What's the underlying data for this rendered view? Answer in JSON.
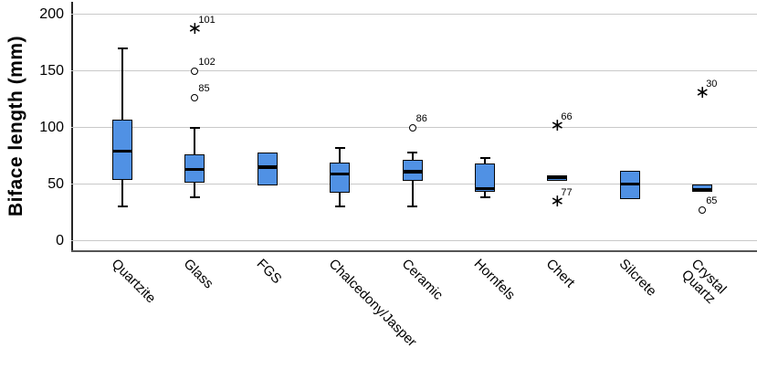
{
  "chart_data": {
    "type": "boxplot",
    "title": "",
    "ylabel": "Biface length (mm)",
    "xlabel": "",
    "yticks": [
      0,
      50,
      100,
      150,
      200
    ],
    "ylim": [
      0,
      212
    ],
    "grid": "horizontal",
    "categories": [
      "Quartzite",
      "Glass",
      "FGS",
      "Chalcedony/Jasper",
      "Ceramic",
      "Hornfels",
      "Chert",
      "Silcrete",
      "Crystal Quartz"
    ],
    "boxes": [
      {
        "category": "Quartzite",
        "display": "Quartzite",
        "whisker_low": 30,
        "q1": 54,
        "median": 79,
        "q3": 107,
        "whisker_high": 170,
        "outliers": []
      },
      {
        "category": "Glass",
        "display": "Glass",
        "whisker_low": 38,
        "q1": 51,
        "median": 63,
        "q3": 76,
        "whisker_high": 100,
        "outliers": [
          {
            "value": 126,
            "label": "85",
            "marker": "circle"
          },
          {
            "value": 150,
            "label": "102",
            "marker": "circle"
          },
          {
            "value": 187,
            "label": "101",
            "marker": "star"
          }
        ]
      },
      {
        "category": "FGS",
        "display": "FGS",
        "whisker_low": 49,
        "q1": 49,
        "median": 65,
        "q3": 78,
        "whisker_high": 78,
        "outliers": []
      },
      {
        "category": "Chalcedony/Jasper",
        "display": "Chalcedony/Jasper",
        "whisker_low": 30,
        "q1": 42,
        "median": 59,
        "q3": 69,
        "whisker_high": 82,
        "outliers": []
      },
      {
        "category": "Ceramic",
        "display": "Ceramic",
        "whisker_low": 30,
        "q1": 53,
        "median": 61,
        "q3": 71,
        "whisker_high": 78,
        "outliers": [
          {
            "value": 100,
            "label": "86",
            "marker": "circle"
          }
        ]
      },
      {
        "category": "Hornfels",
        "display": "Hornfels",
        "whisker_low": 38,
        "q1": 43,
        "median": 46,
        "q3": 68,
        "whisker_high": 73,
        "outliers": []
      },
      {
        "category": "Chert",
        "display": "Chert",
        "whisker_low": 53,
        "q1": 53,
        "median": 56,
        "q3": 58,
        "whisker_high": 58,
        "outliers": [
          {
            "value": 101,
            "label": "66",
            "marker": "star"
          },
          {
            "value": 34,
            "label": "77",
            "marker": "star"
          }
        ]
      },
      {
        "category": "Silcrete",
        "display": "Silcrete",
        "whisker_low": 37,
        "q1": 37,
        "median": 50,
        "q3": 62,
        "whisker_high": 62,
        "outliers": []
      },
      {
        "category": "Crystal Quartz",
        "display": "Crystal\nQuartz",
        "whisker_low": 43,
        "q1": 43,
        "median": 45,
        "q3": 50,
        "whisker_high": 50,
        "outliers": [
          {
            "value": 130,
            "label": "30",
            "marker": "star"
          },
          {
            "value": 27,
            "label": "65",
            "marker": "circle"
          }
        ]
      }
    ],
    "colors": {
      "box_fill": "#5091E4",
      "box_border": "#060606",
      "median": "#000000",
      "gridline": "#C9C9C9",
      "axis": "#262626",
      "frame_bottom": "#555555",
      "background": "#FFFFFF"
    }
  }
}
